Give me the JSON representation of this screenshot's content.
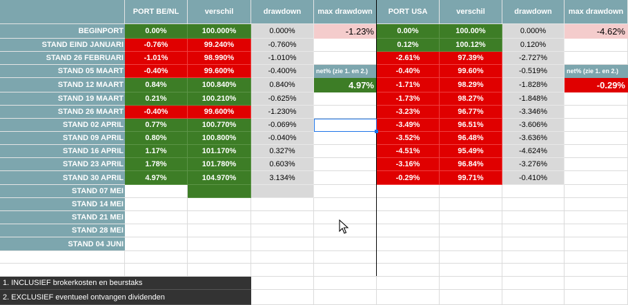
{
  "headers": {
    "be": [
      "PORT BE/NL",
      "verschil",
      "drawdown",
      "max drawdown"
    ],
    "usa": [
      "PORT USA",
      "verschil",
      "drawdown",
      "max drawdown"
    ]
  },
  "rows": [
    {
      "label": "BEGINPORT",
      "be_port": "0.00%",
      "be_port_color": "green",
      "be_verschil": "100.000%",
      "be_verschil_color": "green",
      "be_drawdown": "0.000%",
      "usa_port": "0.00%",
      "usa_port_color": "green",
      "usa_verschil": "100.00%",
      "usa_verschil_color": "green",
      "usa_drawdown": "0.000%"
    },
    {
      "label": "STAND EIND JANUARI",
      "be_port": "-0.76%",
      "be_port_color": "red",
      "be_verschil": "99.240%",
      "be_verschil_color": "red",
      "be_drawdown": "-0.760%",
      "usa_port": "0.12%",
      "usa_port_color": "green",
      "usa_verschil": "100.12%",
      "usa_verschil_color": "green",
      "usa_drawdown": "0.120%"
    },
    {
      "label": "STAND 26 FEBRUARI",
      "be_port": "-1.01%",
      "be_port_color": "red",
      "be_verschil": "98.990%",
      "be_verschil_color": "red",
      "be_drawdown": "-1.010%",
      "usa_port": "-2.61%",
      "usa_port_color": "red",
      "usa_verschil": "97.39%",
      "usa_verschil_color": "red",
      "usa_drawdown": "-2.727%"
    },
    {
      "label": "STAND 05 MAART",
      "be_port": "-0.40%",
      "be_port_color": "red",
      "be_verschil": "99.600%",
      "be_verschil_color": "red",
      "be_drawdown": "-0.400%",
      "usa_port": "-0.40%",
      "usa_port_color": "red",
      "usa_verschil": "99.60%",
      "usa_verschil_color": "red",
      "usa_drawdown": "-0.519%"
    },
    {
      "label": "STAND 12 MAART",
      "be_port": "0.84%",
      "be_port_color": "green",
      "be_verschil": "100.840%",
      "be_verschil_color": "green",
      "be_drawdown": "0.840%",
      "usa_port": "-1.71%",
      "usa_port_color": "red",
      "usa_verschil": "98.29%",
      "usa_verschil_color": "red",
      "usa_drawdown": "-1.828%"
    },
    {
      "label": "STAND 19 MAART",
      "be_port": "0.21%",
      "be_port_color": "green",
      "be_verschil": "100.210%",
      "be_verschil_color": "green",
      "be_drawdown": "-0.625%",
      "usa_port": "-1.73%",
      "usa_port_color": "red",
      "usa_verschil": "98.27%",
      "usa_verschil_color": "red",
      "usa_drawdown": "-1.848%"
    },
    {
      "label": "STAND 26 MAART",
      "be_port": "-0.40%",
      "be_port_color": "red",
      "be_verschil": "99.600%",
      "be_verschil_color": "red",
      "be_drawdown": "-1.230%",
      "usa_port": "-3.23%",
      "usa_port_color": "red",
      "usa_verschil": "96.77%",
      "usa_verschil_color": "red",
      "usa_drawdown": "-3.346%"
    },
    {
      "label": "STAND 02 APRIL",
      "be_port": "0.77%",
      "be_port_color": "green",
      "be_verschil": "100.770%",
      "be_verschil_color": "green",
      "be_drawdown": "-0.069%",
      "usa_port": "-3.49%",
      "usa_port_color": "red",
      "usa_verschil": "96.51%",
      "usa_verschil_color": "red",
      "usa_drawdown": "-3.606%"
    },
    {
      "label": "STAND 09 APRIL",
      "be_port": "0.80%",
      "be_port_color": "green",
      "be_verschil": "100.800%",
      "be_verschil_color": "green",
      "be_drawdown": "-0.040%",
      "usa_port": "-3.52%",
      "usa_port_color": "red",
      "usa_verschil": "96.48%",
      "usa_verschil_color": "red",
      "usa_drawdown": "-3.636%"
    },
    {
      "label": "STAND 16 APRIL",
      "be_port": "1.17%",
      "be_port_color": "green",
      "be_verschil": "101.170%",
      "be_verschil_color": "green",
      "be_drawdown": "0.327%",
      "usa_port": "-4.51%",
      "usa_port_color": "red",
      "usa_verschil": "95.49%",
      "usa_verschil_color": "red",
      "usa_drawdown": "-4.624%"
    },
    {
      "label": "STAND 23 APRIL",
      "be_port": "1.78%",
      "be_port_color": "green",
      "be_verschil": "101.780%",
      "be_verschil_color": "green",
      "be_drawdown": "0.603%",
      "usa_port": "-3.16%",
      "usa_port_color": "red",
      "usa_verschil": "96.84%",
      "usa_verschil_color": "red",
      "usa_drawdown": "-3.276%"
    },
    {
      "label": "STAND 30 APRIL",
      "be_port": "4.97%",
      "be_port_color": "green",
      "be_verschil": "104.970%",
      "be_verschil_color": "green",
      "be_drawdown": "3.134%",
      "usa_port": "-0.29%",
      "usa_port_color": "red",
      "usa_verschil": "99.71%",
      "usa_verschil_color": "red",
      "usa_drawdown": "-0.410%"
    },
    {
      "label": "STAND 07 MEI",
      "be_port": "",
      "be_port_color": "none",
      "be_verschil": "",
      "be_verschil_color": "green",
      "be_drawdown": "",
      "usa_port": "",
      "usa_port_color": "none",
      "usa_verschil": "",
      "usa_verschil_color": "none",
      "usa_drawdown": ""
    },
    {
      "label": "STAND 14 MEI",
      "be_port": "",
      "be_port_color": "none",
      "be_verschil": "",
      "be_verschil_color": "none",
      "be_drawdown": "",
      "usa_port": "",
      "usa_port_color": "none",
      "usa_verschil": "",
      "usa_verschil_color": "none",
      "usa_drawdown": ""
    },
    {
      "label": "STAND 21 MEI",
      "be_port": "",
      "be_port_color": "none",
      "be_verschil": "",
      "be_verschil_color": "none",
      "be_drawdown": "",
      "usa_port": "",
      "usa_port_color": "none",
      "usa_verschil": "",
      "usa_verschil_color": "none",
      "usa_drawdown": ""
    },
    {
      "label": "STAND 28 MEI",
      "be_port": "",
      "be_port_color": "none",
      "be_verschil": "",
      "be_verschil_color": "none",
      "be_drawdown": "",
      "usa_port": "",
      "usa_port_color": "none",
      "usa_verschil": "",
      "usa_verschil_color": "none",
      "usa_drawdown": ""
    },
    {
      "label": "STAND 04 JUNI",
      "be_port": "",
      "be_port_color": "none",
      "be_verschil": "",
      "be_verschil_color": "none",
      "be_drawdown": "",
      "usa_port": "",
      "usa_port_color": "none",
      "usa_verschil": "",
      "usa_verschil_color": "none",
      "usa_drawdown": ""
    }
  ],
  "be_max_drawdown": "-1.23%",
  "usa_max_drawdown": "-4.62%",
  "net_label": "net% (zie 1. en 2.)",
  "be_net": "4.97%",
  "usa_net": "-0.29%",
  "notes": [
    "1. INCLUSIEF brokerkosten en beurstaks",
    "2. EXCLUSIEF eventueel ontvangen dividenden"
  ],
  "colors": {
    "header": "#7da6ae",
    "green": "#3d7d26",
    "red": "#e00000",
    "gray": "#d9d9d9",
    "pink": "#f4cccc",
    "note": "#333333",
    "selection": "#1a73e8"
  }
}
